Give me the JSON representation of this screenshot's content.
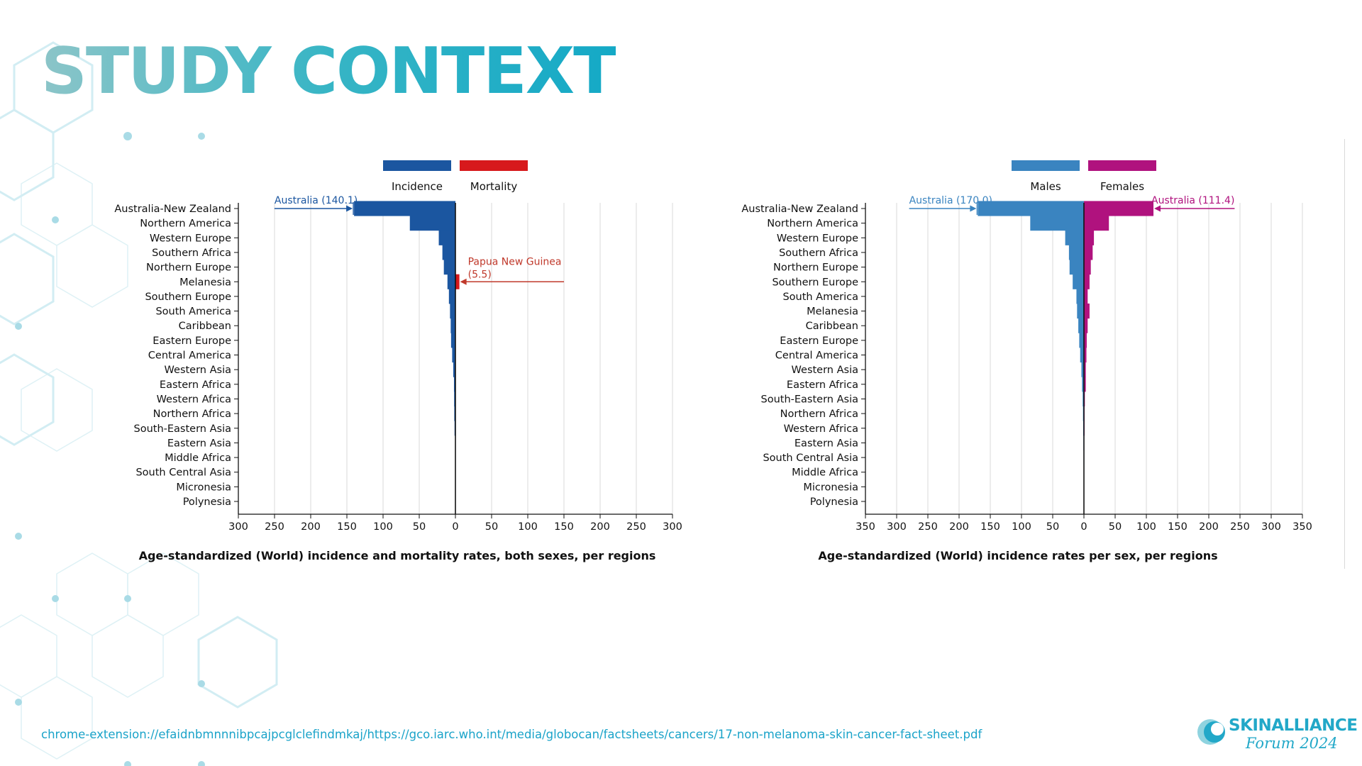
{
  "slide": {
    "title": "STUDY CONTEXT",
    "source_text": "chrome-extension://efaidnbmnnnibpcajpcglclefindmkaj/https://gco.iarc.who.int/media/globocan/factsheets/cancers/17-non-melanoma-skin-cancer-fact-sheet.pdf",
    "logo": {
      "line1": "SKINALLIANCE",
      "line2": "Forum 2024"
    }
  },
  "chart_data": [
    {
      "type": "bar",
      "orientation": "horizontal",
      "caption": "Age-standardized (World) incidence and mortality rates, both sexes, per regions",
      "categories": [
        "Australia-New Zealand",
        "Northern America",
        "Western Europe",
        "Southern Africa",
        "Northern Europe",
        "Melanesia",
        "Southern Europe",
        "South America",
        "Caribbean",
        "Eastern Europe",
        "Central America",
        "Western Asia",
        "Eastern Africa",
        "Western Africa",
        "Northern Africa",
        "South-Eastern Asia",
        "Eastern Asia",
        "Middle Africa",
        "South Central Asia",
        "Micronesia",
        "Polynesia"
      ],
      "series": [
        {
          "name": "Incidence",
          "color": "#1b56a0",
          "side": "left",
          "values": [
            140.1,
            63,
            23,
            18,
            16,
            11,
            9,
            7.5,
            6.5,
            6,
            4.5,
            3,
            2,
            1.8,
            1.6,
            1.2,
            0,
            0,
            0,
            0,
            0
          ]
        },
        {
          "name": "Mortality",
          "color": "#d7191c",
          "side": "right",
          "values": [
            0,
            0,
            0,
            0,
            0,
            5.5,
            0.3,
            0.3,
            0.3,
            0.3,
            0.3,
            0.3,
            0.4,
            0.3,
            0.3,
            0.2,
            0,
            0,
            0,
            0,
            0
          ]
        }
      ],
      "xlim": [
        -300,
        300
      ],
      "xticks": [
        "300",
        "250",
        "200",
        "150",
        "100",
        "50",
        "0",
        "50",
        "100",
        "150",
        "200",
        "250",
        "300"
      ],
      "annotations": [
        {
          "text": "Australia (140.1)",
          "series": "Incidence",
          "category": "Australia-New Zealand",
          "color": "#1b56a0"
        },
        {
          "text": "Papua New Guinea (5.5)",
          "series": "Mortality",
          "category": "Melanesia",
          "color": "#c0392b"
        }
      ],
      "legend": "top"
    },
    {
      "type": "bar",
      "orientation": "horizontal",
      "caption": "Age-standardized (World) incidence rates per sex, per regions",
      "categories": [
        "Australia-New Zealand",
        "Northern America",
        "Western Europe",
        "Southern Africa",
        "Northern Europe",
        "Southern Europe",
        "South America",
        "Melanesia",
        "Caribbean",
        "Eastern Europe",
        "Central America",
        "Western Asia",
        "Eastern Africa",
        "South-Eastern Asia",
        "Northern Africa",
        "Western Africa",
        "Eastern Asia",
        "South Central Asia",
        "Middle Africa",
        "Micronesia",
        "Polynesia"
      ],
      "series": [
        {
          "name": "Males",
          "color": "#3a84c0",
          "side": "left",
          "values": [
            170.0,
            86,
            30,
            24,
            23,
            18,
            12,
            11,
            9,
            7.5,
            6,
            4,
            3,
            2,
            1.5,
            1.2,
            0.8,
            0.6,
            0.5,
            0,
            0
          ]
        },
        {
          "name": "Females",
          "color": "#b0127e",
          "side": "right",
          "values": [
            111.4,
            40,
            16,
            14,
            11,
            9,
            6,
            9,
            6,
            4.5,
            4,
            3,
            3,
            1.5,
            1,
            1,
            0.6,
            0.5,
            0.5,
            0,
            0
          ]
        }
      ],
      "xlim": [
        -350,
        350
      ],
      "xticks": [
        "350",
        "300",
        "250",
        "200",
        "150",
        "100",
        "50",
        "0",
        "50",
        "100",
        "150",
        "200",
        "250",
        "300",
        "350"
      ],
      "annotations": [
        {
          "text": "Australia (170.0)",
          "series": "Males",
          "category": "Australia-New Zealand",
          "color": "#3a84c0"
        },
        {
          "text": "Australia (111.4)",
          "series": "Females",
          "category": "Australia-New Zealand",
          "color": "#b0127e"
        }
      ],
      "legend": "top"
    }
  ]
}
